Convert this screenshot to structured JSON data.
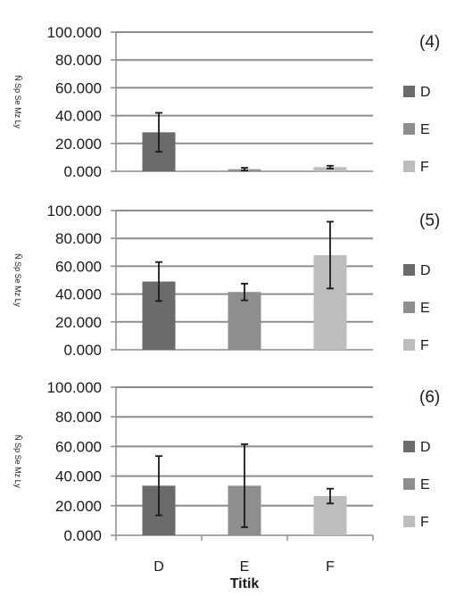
{
  "chart_data": [
    {
      "type": "bar",
      "panel_label": "(4)",
      "ylabel": "Ñ Sp Se Mz Ly",
      "xlabel": "",
      "categories": [
        "D",
        "E",
        "F"
      ],
      "values": [
        28,
        1.5,
        3
      ],
      "errors": [
        14,
        1,
        1
      ],
      "ylim": [
        0,
        100
      ],
      "yticks": [
        "0.000",
        "20.000",
        "40.000",
        "60.000",
        "80.000",
        "100.000"
      ],
      "grid": true,
      "legend": {
        "position": "right",
        "entries": [
          "D",
          "E",
          "F"
        ]
      },
      "colors": [
        "#6b6b6b",
        "#8e8e8e",
        "#bdbdbd"
      ]
    },
    {
      "type": "bar",
      "panel_label": "(5)",
      "ylabel": "Ñ Sp Se Mz Ly",
      "xlabel": "",
      "categories": [
        "D",
        "E",
        "F"
      ],
      "values": [
        49,
        41.5,
        68
      ],
      "errors": [
        14,
        6,
        24
      ],
      "ylim": [
        0,
        100
      ],
      "yticks": [
        "0.000",
        "20.000",
        "40.000",
        "60.000",
        "80.000",
        "100.000"
      ],
      "grid": true,
      "legend": {
        "position": "right",
        "entries": [
          "D",
          "E",
          "F"
        ]
      },
      "colors": [
        "#6b6b6b",
        "#8e8e8e",
        "#bdbdbd"
      ]
    },
    {
      "type": "bar",
      "panel_label": "(6)",
      "ylabel": "Ñ Sp Se Mz Ly",
      "xlabel": "Titik",
      "categories": [
        "D",
        "E",
        "F"
      ],
      "values": [
        33.5,
        33.5,
        26.5
      ],
      "errors": [
        20,
        28,
        5
      ],
      "ylim": [
        0,
        100
      ],
      "yticks": [
        "0.000",
        "20.000",
        "40.000",
        "60.000",
        "80.000",
        "100.000"
      ],
      "grid": true,
      "legend": {
        "position": "right",
        "entries": [
          "D",
          "E",
          "F"
        ]
      },
      "colors": [
        "#6b6b6b",
        "#8e8e8e",
        "#bdbdbd"
      ]
    }
  ]
}
